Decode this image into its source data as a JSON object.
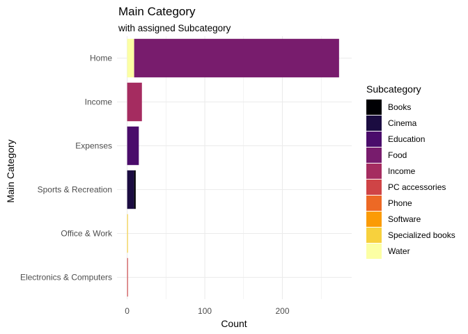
{
  "chart_data": {
    "type": "bar",
    "orientation": "horizontal",
    "stacked": true,
    "title": "Main Category",
    "subtitle": "with assigned Subcategory",
    "xlabel": "Count",
    "ylabel": "Main Category",
    "xlim": [
      0,
      270
    ],
    "xticks": [
      0,
      100,
      200
    ],
    "grid": true,
    "legend_position": "right",
    "legend_title": "Subcategory",
    "categories": [
      "Home",
      "Income",
      "Expenses",
      "Sports & Recreation",
      "Office & Work",
      "Electronics & Computers"
    ],
    "series": [
      {
        "name": "Books",
        "color": "#000004",
        "values": [
          0,
          0,
          0,
          2,
          0,
          0
        ]
      },
      {
        "name": "Cinema",
        "color": "#1b0c41",
        "values": [
          0,
          0,
          0,
          9,
          0,
          0
        ]
      },
      {
        "name": "Education",
        "color": "#4a0c6b",
        "values": [
          0,
          0,
          15,
          0,
          0,
          0
        ]
      },
      {
        "name": "Food",
        "color": "#781c6d",
        "values": [
          264,
          0,
          0,
          0,
          0,
          0
        ]
      },
      {
        "name": "Income",
        "color": "#a52c60",
        "values": [
          0,
          19,
          0,
          0,
          0,
          0
        ]
      },
      {
        "name": "PC accessories",
        "color": "#cf4446",
        "values": [
          0,
          0,
          0,
          0,
          0,
          1
        ]
      },
      {
        "name": "Phone",
        "color": "#ed6925",
        "values": [
          0,
          0,
          0,
          0,
          0,
          0
        ]
      },
      {
        "name": "Software",
        "color": "#fb9b06",
        "values": [
          0,
          0,
          0,
          0,
          0,
          0
        ]
      },
      {
        "name": "Specialized books",
        "color": "#f7d13d",
        "values": [
          0,
          0,
          0,
          0,
          1,
          0
        ]
      },
      {
        "name": "Water",
        "color": "#fcffa4",
        "values": [
          9,
          0,
          0,
          0,
          0,
          0
        ]
      }
    ]
  }
}
